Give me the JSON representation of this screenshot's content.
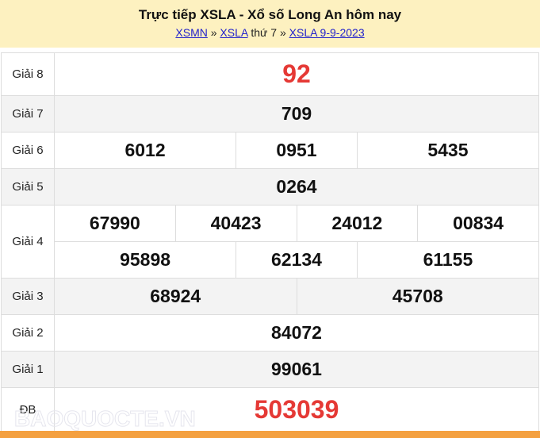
{
  "header": {
    "title": "Trực tiếp XSLA - Xổ số Long An hôm nay",
    "breadcrumb": {
      "link1": "XSMN",
      "sep1": " » ",
      "link2": "XSLA",
      "text": " thứ 7 » ",
      "link3": "XSLA 9-9-2023"
    }
  },
  "results": {
    "g8": {
      "label": "Giải 8",
      "values": [
        "92"
      ]
    },
    "g7": {
      "label": "Giải 7",
      "values": [
        "709"
      ]
    },
    "g6": {
      "label": "Giải 6",
      "values": [
        "6012",
        "0951",
        "5435"
      ]
    },
    "g5": {
      "label": "Giải 5",
      "values": [
        "0264"
      ]
    },
    "g4": {
      "label": "Giải 4",
      "values": [
        "67990",
        "40423",
        "24012",
        "00834",
        "95898",
        "62134",
        "61155"
      ]
    },
    "g3": {
      "label": "Giải 3",
      "values": [
        "68924",
        "45708"
      ]
    },
    "g2": {
      "label": "Giải 2",
      "values": [
        "84072"
      ]
    },
    "g1": {
      "label": "Giải 1",
      "values": [
        "99061"
      ]
    },
    "db": {
      "label": "ĐB",
      "values": [
        "503039"
      ]
    }
  },
  "watermark": "BAOQUOCTE.VN",
  "colors": {
    "accent_red": "#e53935",
    "header_bg": "#fdf1c0",
    "footer_bar": "#f4a040"
  }
}
